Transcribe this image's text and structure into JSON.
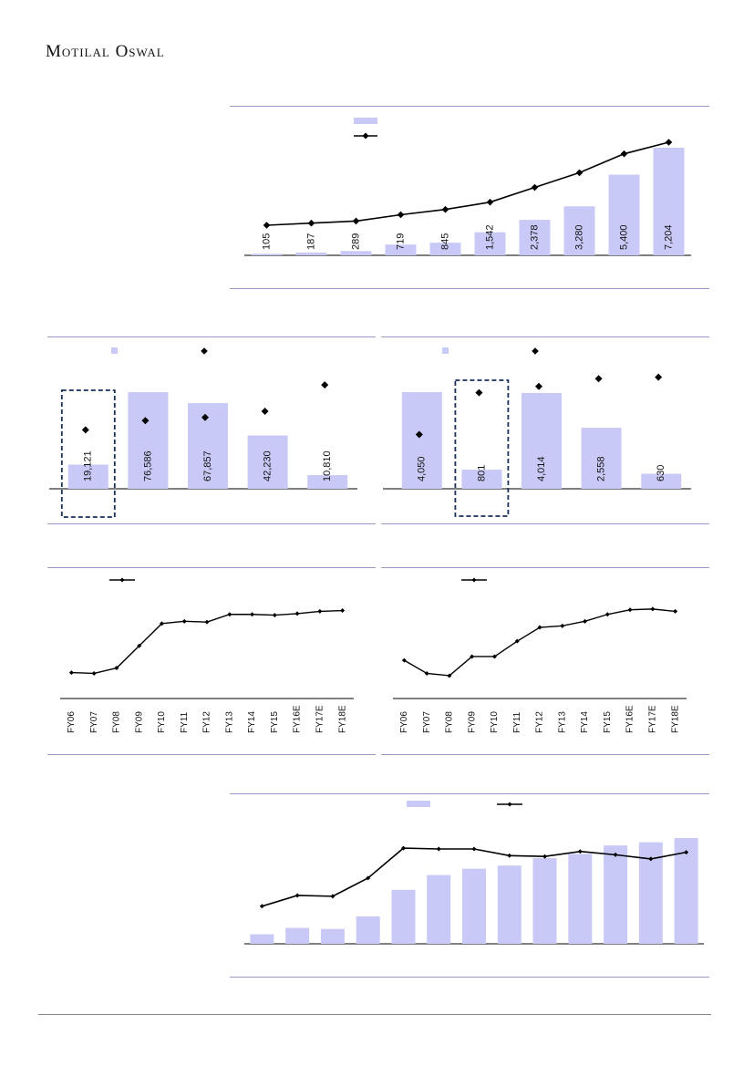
{
  "brand": "Motilal Oswal",
  "colors": {
    "bar": "#c9c9f7",
    "line": "#000000",
    "rule": "#9a9ac8",
    "box": "#1a2f5a"
  },
  "chart_data": [
    {
      "id": "c1",
      "type": "bar+line",
      "categories": [
        "",
        "",
        "",
        "",
        "",
        "",
        "",
        "",
        "",
        ""
      ],
      "bar_values": [
        105,
        187,
        289,
        719,
        845,
        1542,
        2378,
        3280,
        5400,
        7204
      ],
      "bar_labels": [
        "105",
        "187",
        "289",
        "719",
        "845",
        "1,542",
        "2,378",
        "3,280",
        "5,400",
        "7,204"
      ],
      "line_values": [
        0.3,
        0.32,
        0.34,
        0.4,
        0.45,
        0.52,
        0.66,
        0.8,
        0.98,
        1.09
      ],
      "legend": "top-left",
      "grid": false
    },
    {
      "id": "c2",
      "type": "bar+scatter",
      "categories": [
        "",
        "",
        "",
        "",
        ""
      ],
      "bar_values": [
        19121,
        76586,
        67857,
        42230,
        10810
      ],
      "bar_labels": [
        "19,121",
        "76,586",
        "67,857",
        "42,230",
        "10,810"
      ],
      "point_values": [
        0.38,
        0.44,
        0.46,
        0.5,
        0.67
      ],
      "highlight_index": 0,
      "legend": "top-left",
      "grid": false
    },
    {
      "id": "c3",
      "type": "bar+scatter",
      "categories": [
        "",
        "",
        "",
        "",
        ""
      ],
      "bar_values": [
        4050,
        801,
        4014,
        2558,
        630
      ],
      "bar_labels": [
        "4,050",
        "801",
        "4,014",
        "2,558",
        "630"
      ],
      "point_values": [
        0.35,
        0.62,
        0.66,
        0.71,
        0.72
      ],
      "highlight_index": 1,
      "legend": "top-left",
      "grid": false
    },
    {
      "id": "c4",
      "type": "line",
      "categories": [
        "FY06",
        "FY07",
        "FY08",
        "FY09",
        "FY10",
        "FY11",
        "FY12",
        "FY13",
        "FY14",
        "FY15",
        "FY16E",
        "FY17E",
        "FY18E"
      ],
      "values": [
        0.1,
        0.09,
        0.16,
        0.45,
        0.74,
        0.77,
        0.76,
        0.86,
        0.86,
        0.85,
        0.87,
        0.9,
        0.91
      ],
      "legend": "top-left",
      "grid": false
    },
    {
      "id": "c5",
      "type": "line",
      "categories": [
        "FY06",
        "FY07",
        "FY08",
        "FY09",
        "FY10",
        "FY11",
        "FY12",
        "FY13",
        "FY14",
        "FY15",
        "FY16E",
        "FY17E",
        "FY18E"
      ],
      "values": [
        0.26,
        0.09,
        0.06,
        0.31,
        0.31,
        0.51,
        0.69,
        0.71,
        0.77,
        0.86,
        0.92,
        0.93,
        0.9
      ],
      "legend": "top-left",
      "grid": false
    },
    {
      "id": "c6",
      "type": "bar+line",
      "categories": [
        "",
        "",
        "",
        "",
        "",
        "",
        "",
        "",
        "",
        "",
        "",
        "",
        ""
      ],
      "bar_values": [
        0.09,
        0.15,
        0.14,
        0.26,
        0.51,
        0.65,
        0.71,
        0.74,
        0.81,
        0.85,
        0.93,
        0.96,
        1.0
      ],
      "line_values": [
        0.2,
        0.33,
        0.32,
        0.54,
        0.9,
        0.89,
        0.89,
        0.81,
        0.8,
        0.86,
        0.82,
        0.77,
        0.85
      ],
      "legend": "top-center",
      "grid": false
    }
  ]
}
